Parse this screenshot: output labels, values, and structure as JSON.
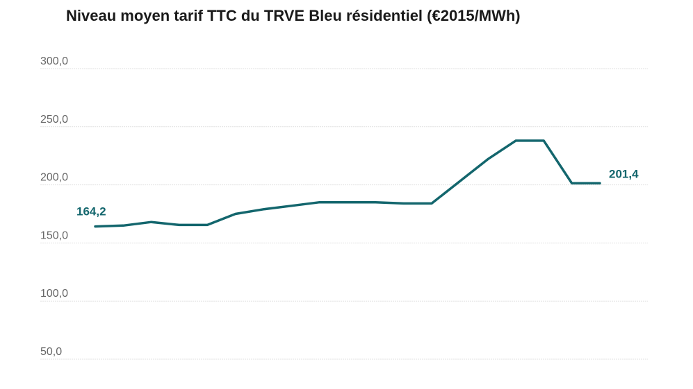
{
  "chart_data": {
    "type": "line",
    "title": "Niveau moyen tarif TTC du TRVE Bleu résidentiel (€2015/MWh)",
    "ylim": [
      30,
      300
    ],
    "yticks": [
      300,
      250,
      200,
      150,
      100,
      50
    ],
    "ytick_labels": [
      "300,0",
      "250,0",
      "200,0",
      "150,0",
      "100,0",
      "50,0"
    ],
    "grid": true,
    "series": [
      {
        "color": "#13666d",
        "values": [
          164.2,
          165,
          168,
          165.5,
          165.5,
          175,
          179,
          182,
          185,
          185,
          185,
          184,
          184,
          203,
          222,
          238,
          238,
          201.4,
          201.4
        ]
      }
    ],
    "annotations": [
      {
        "text": "164,2",
        "point_index": 0
      },
      {
        "text": "201,4",
        "point_index": 18
      }
    ]
  }
}
